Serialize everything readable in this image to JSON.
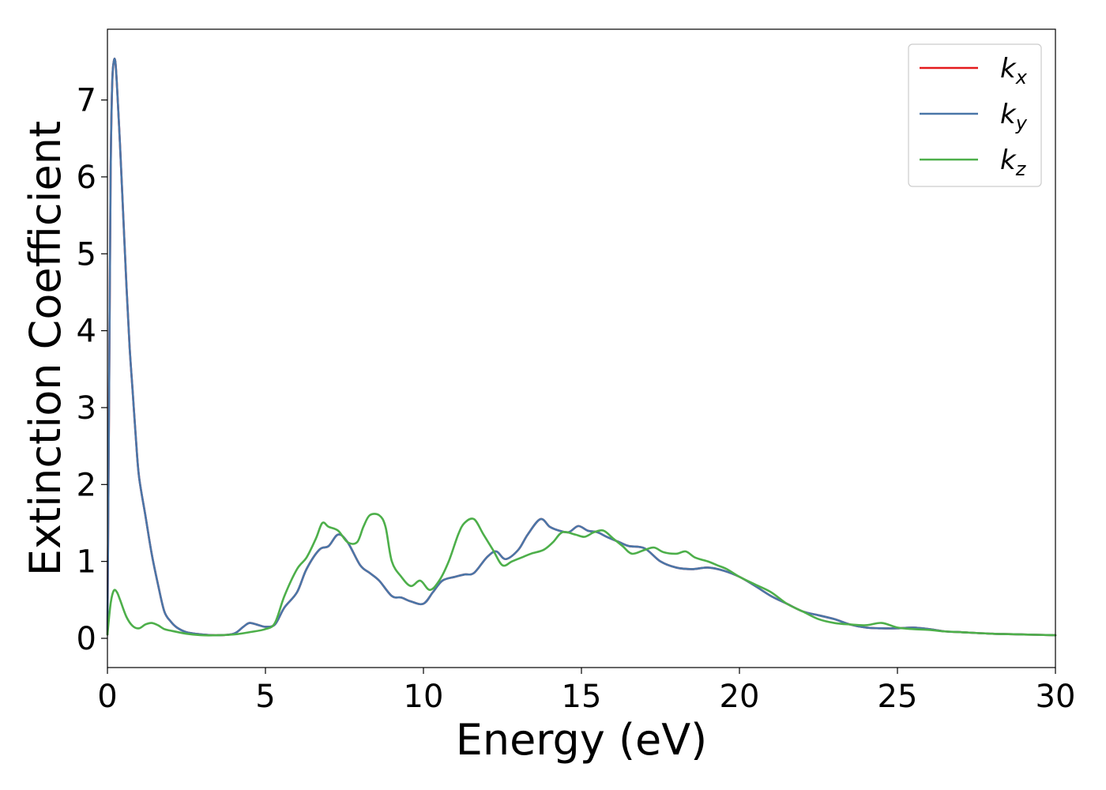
{
  "chart_data": {
    "type": "line",
    "xlabel": "Energy (eV)",
    "ylabel": "Extinction Coefficient",
    "xlim": [
      0,
      30
    ],
    "ylim": [
      -0.38,
      7.92
    ],
    "xticks": [
      "0",
      "5",
      "10",
      "15",
      "20",
      "25",
      "30"
    ],
    "yticks": [
      "0",
      "1",
      "2",
      "3",
      "4",
      "5",
      "6",
      "7"
    ],
    "grid": false,
    "legend_position": "top-right",
    "series": [
      {
        "name": "k",
        "subscript": "x",
        "color": "#e41a1c",
        "x": [
          0,
          0.05,
          0.1,
          0.15,
          0.2,
          0.25,
          0.3,
          0.4,
          0.5,
          0.6,
          0.7,
          0.8,
          0.9,
          1.0,
          1.2,
          1.4,
          1.6,
          1.8,
          2.0,
          2.2,
          2.5,
          3.0,
          3.5,
          4.0,
          4.3,
          4.5,
          4.8,
          5.0,
          5.3,
          5.6,
          6.0,
          6.3,
          6.7,
          7.0,
          7.3,
          7.6,
          8.0,
          8.3,
          8.6,
          9.0,
          9.3,
          9.6,
          10.0,
          10.3,
          10.6,
          11.0,
          11.3,
          11.6,
          12.0,
          12.3,
          12.6,
          13.0,
          13.3,
          13.7,
          14.0,
          14.3,
          14.6,
          14.9,
          15.2,
          15.5,
          15.8,
          16.2,
          16.5,
          17.0,
          17.5,
          18.0,
          18.5,
          19.0,
          19.5,
          20.0,
          20.5,
          21.0,
          21.5,
          22.0,
          22.5,
          23.0,
          23.5,
          24.0,
          24.5,
          25.0,
          25.5,
          26.0,
          26.5,
          27.0,
          28.0,
          29.0,
          30.0
        ],
        "y": [
          0.05,
          3.0,
          6.0,
          7.2,
          7.5,
          7.5,
          7.2,
          6.4,
          5.5,
          4.6,
          3.8,
          3.2,
          2.6,
          2.1,
          1.6,
          1.1,
          0.7,
          0.35,
          0.22,
          0.14,
          0.08,
          0.05,
          0.04,
          0.06,
          0.15,
          0.2,
          0.17,
          0.15,
          0.18,
          0.4,
          0.6,
          0.9,
          1.15,
          1.2,
          1.35,
          1.25,
          0.95,
          0.85,
          0.75,
          0.55,
          0.53,
          0.48,
          0.45,
          0.6,
          0.75,
          0.8,
          0.83,
          0.85,
          1.05,
          1.13,
          1.03,
          1.15,
          1.35,
          1.55,
          1.45,
          1.4,
          1.38,
          1.46,
          1.4,
          1.38,
          1.32,
          1.25,
          1.2,
          1.17,
          1.0,
          0.92,
          0.9,
          0.92,
          0.88,
          0.8,
          0.68,
          0.55,
          0.45,
          0.35,
          0.3,
          0.25,
          0.18,
          0.14,
          0.13,
          0.13,
          0.14,
          0.12,
          0.09,
          0.08,
          0.06,
          0.05,
          0.04
        ]
      },
      {
        "name": "k",
        "subscript": "y",
        "color": "#4a76a8",
        "x": [
          0,
          0.05,
          0.1,
          0.15,
          0.2,
          0.25,
          0.3,
          0.4,
          0.5,
          0.6,
          0.7,
          0.8,
          0.9,
          1.0,
          1.2,
          1.4,
          1.6,
          1.8,
          2.0,
          2.2,
          2.5,
          3.0,
          3.5,
          4.0,
          4.3,
          4.5,
          4.8,
          5.0,
          5.3,
          5.6,
          6.0,
          6.3,
          6.7,
          7.0,
          7.3,
          7.6,
          8.0,
          8.3,
          8.6,
          9.0,
          9.3,
          9.6,
          10.0,
          10.3,
          10.6,
          11.0,
          11.3,
          11.6,
          12.0,
          12.3,
          12.6,
          13.0,
          13.3,
          13.7,
          14.0,
          14.3,
          14.6,
          14.9,
          15.2,
          15.5,
          15.8,
          16.2,
          16.5,
          17.0,
          17.5,
          18.0,
          18.5,
          19.0,
          19.5,
          20.0,
          20.5,
          21.0,
          21.5,
          22.0,
          22.5,
          23.0,
          23.5,
          24.0,
          24.5,
          25.0,
          25.5,
          26.0,
          26.5,
          27.0,
          28.0,
          29.0,
          30.0
        ],
        "y": [
          0.05,
          3.0,
          6.0,
          7.2,
          7.5,
          7.5,
          7.2,
          6.4,
          5.5,
          4.6,
          3.8,
          3.2,
          2.6,
          2.1,
          1.6,
          1.1,
          0.7,
          0.35,
          0.22,
          0.14,
          0.08,
          0.05,
          0.04,
          0.06,
          0.15,
          0.2,
          0.17,
          0.15,
          0.18,
          0.4,
          0.6,
          0.9,
          1.15,
          1.2,
          1.35,
          1.25,
          0.95,
          0.85,
          0.75,
          0.55,
          0.53,
          0.48,
          0.45,
          0.6,
          0.75,
          0.8,
          0.83,
          0.85,
          1.05,
          1.13,
          1.03,
          1.15,
          1.35,
          1.55,
          1.45,
          1.4,
          1.38,
          1.46,
          1.4,
          1.38,
          1.32,
          1.25,
          1.2,
          1.17,
          1.0,
          0.92,
          0.9,
          0.92,
          0.88,
          0.8,
          0.68,
          0.55,
          0.45,
          0.35,
          0.3,
          0.25,
          0.18,
          0.14,
          0.13,
          0.13,
          0.14,
          0.12,
          0.09,
          0.08,
          0.06,
          0.05,
          0.04
        ]
      },
      {
        "name": "k",
        "subscript": "z",
        "color": "#4daf4a",
        "x": [
          0,
          0.1,
          0.2,
          0.3,
          0.4,
          0.6,
          0.8,
          1.0,
          1.2,
          1.4,
          1.6,
          1.8,
          2.0,
          2.5,
          3.0,
          3.5,
          4.0,
          4.5,
          5.0,
          5.3,
          5.6,
          6.0,
          6.3,
          6.6,
          6.8,
          7.0,
          7.3,
          7.6,
          7.9,
          8.1,
          8.3,
          8.6,
          8.8,
          9.0,
          9.3,
          9.6,
          9.9,
          10.2,
          10.5,
          10.8,
          11.1,
          11.3,
          11.6,
          11.9,
          12.2,
          12.5,
          12.8,
          13.1,
          13.4,
          13.8,
          14.1,
          14.4,
          14.8,
          15.1,
          15.4,
          15.7,
          16.0,
          16.3,
          16.6,
          17.0,
          17.3,
          17.6,
          18.0,
          18.3,
          18.6,
          19.0,
          19.3,
          19.6,
          20.0,
          20.5,
          21.0,
          21.5,
          22.0,
          22.5,
          23.0,
          23.5,
          24.0,
          24.5,
          25.0,
          25.5,
          26.0,
          26.5,
          27.0,
          28.0,
          29.0,
          30.0
        ],
        "y": [
          0.05,
          0.45,
          0.62,
          0.6,
          0.5,
          0.28,
          0.16,
          0.13,
          0.18,
          0.2,
          0.17,
          0.12,
          0.1,
          0.06,
          0.04,
          0.04,
          0.05,
          0.08,
          0.12,
          0.2,
          0.55,
          0.9,
          1.05,
          1.3,
          1.5,
          1.45,
          1.4,
          1.25,
          1.25,
          1.45,
          1.6,
          1.6,
          1.45,
          1.0,
          0.8,
          0.68,
          0.75,
          0.63,
          0.75,
          1.0,
          1.35,
          1.5,
          1.55,
          1.35,
          1.15,
          0.95,
          1.0,
          1.05,
          1.1,
          1.15,
          1.25,
          1.38,
          1.35,
          1.32,
          1.38,
          1.4,
          1.3,
          1.2,
          1.1,
          1.15,
          1.18,
          1.12,
          1.1,
          1.13,
          1.05,
          1.0,
          0.95,
          0.9,
          0.8,
          0.7,
          0.6,
          0.45,
          0.35,
          0.25,
          0.2,
          0.18,
          0.17,
          0.2,
          0.14,
          0.12,
          0.11,
          0.09,
          0.08,
          0.06,
          0.05,
          0.04
        ]
      }
    ]
  }
}
